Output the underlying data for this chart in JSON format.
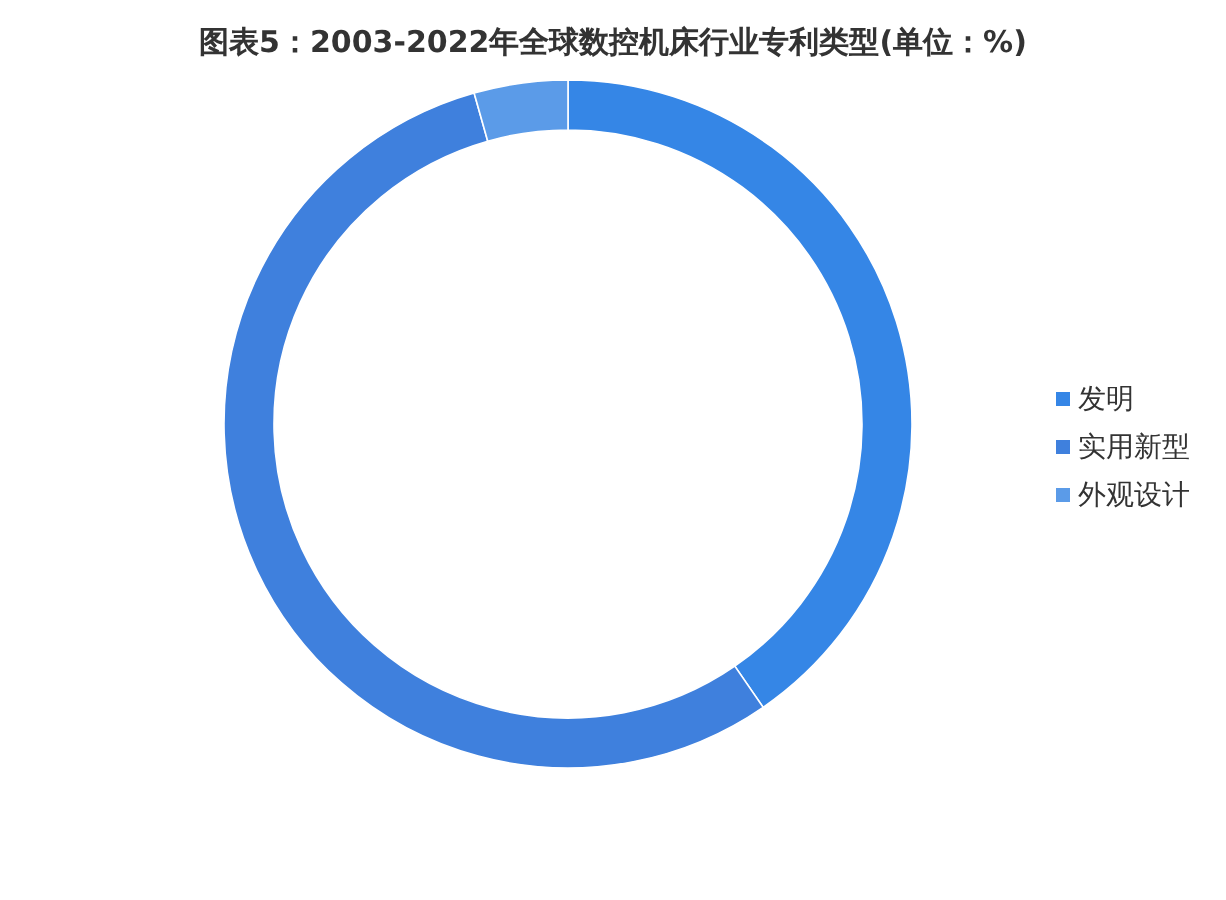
{
  "chart_data": {
    "type": "donut",
    "title": "图表5：2003-2022年全球数控机床行业专利类型(单位：%)",
    "categories": [
      "发明",
      "实用新型",
      "外观设计"
    ],
    "values": [
      40.4,
      55.2,
      4.4
    ],
    "colors": [
      "#3586e6",
      "#3f80dd",
      "#5b9be8"
    ],
    "legend": "right"
  }
}
